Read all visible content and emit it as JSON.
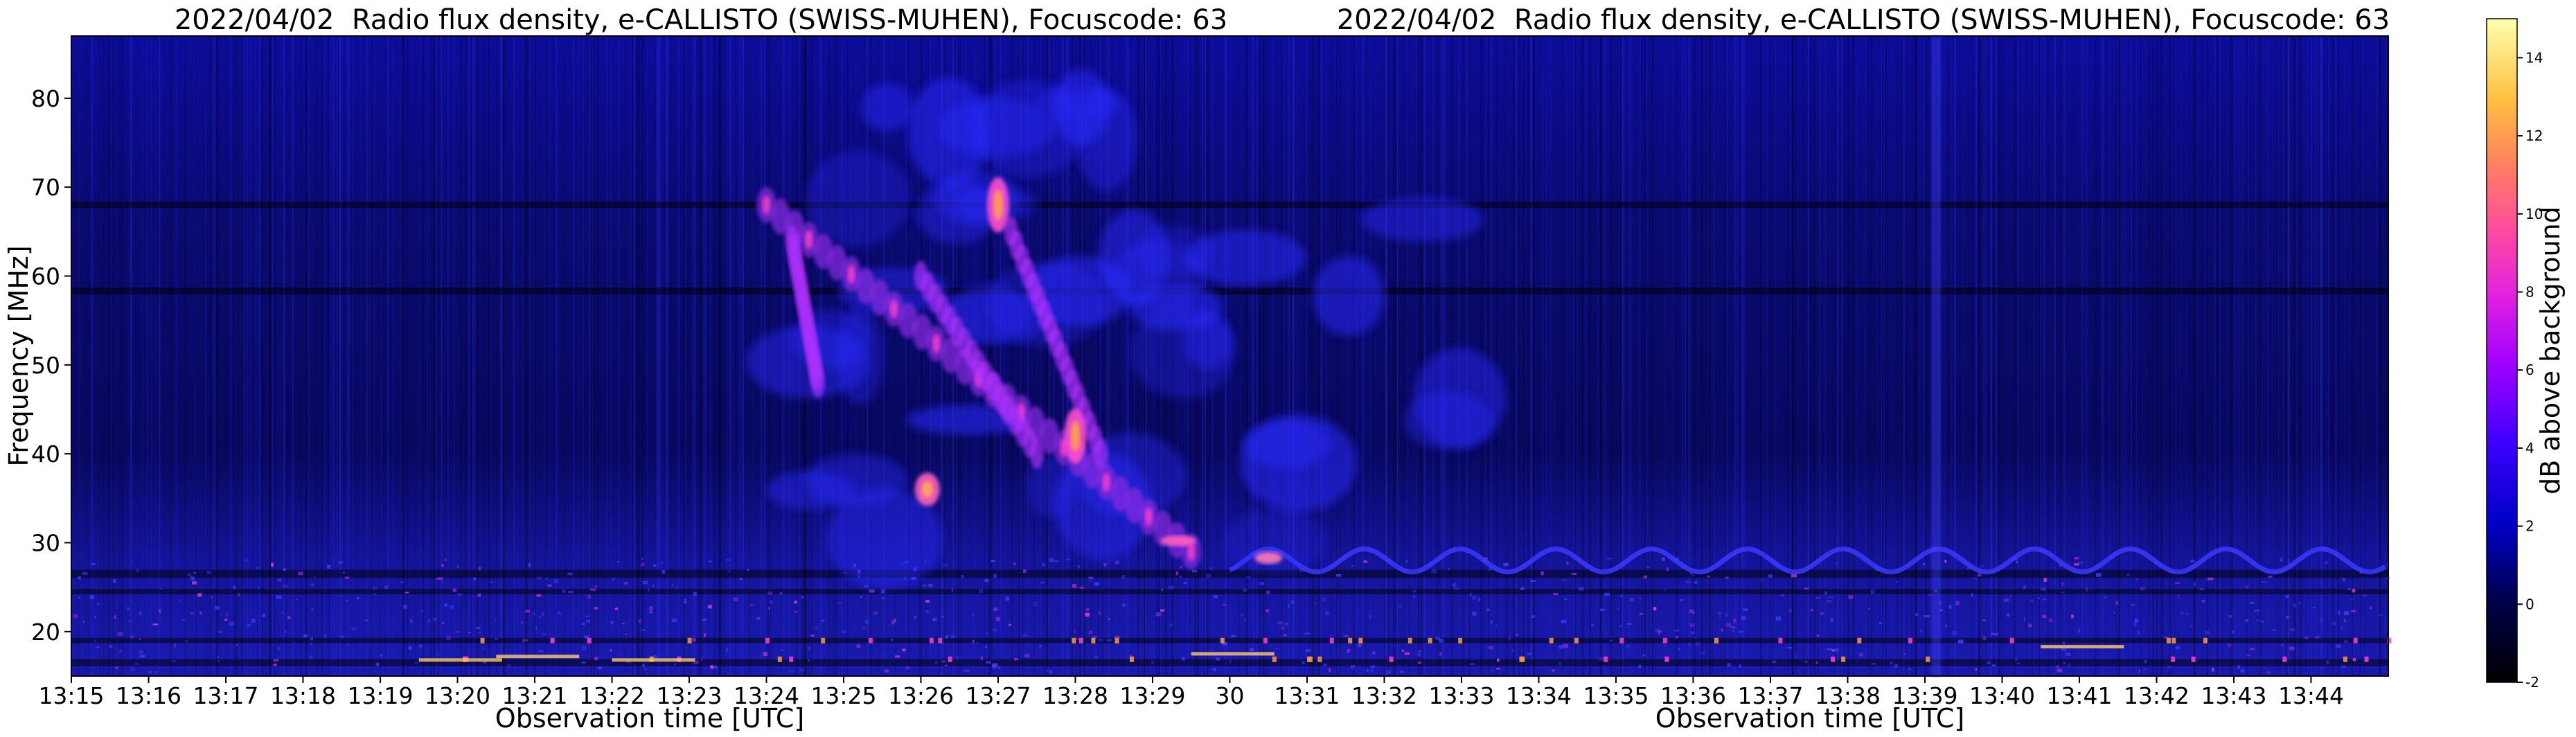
{
  "colors": {
    "background_low": "#000000",
    "background_mid": "#0a0a8c",
    "blue": "#2020ff",
    "violet": "#8a2be2",
    "magenta": "#ff2fd0",
    "orange": "#ff9a3a",
    "yellow": "#ffff60"
  },
  "chart_data": [
    {
      "type": "heatmap",
      "title": "2022/04/02  Radio flux density, e-CALLISTO (SWISS-MUHEN), Focuscode: 63",
      "xlabel": "Observation time [UTC]",
      "ylabel": "Frequency [MHz]",
      "x_ticks": [
        "13:15",
        "13:16",
        "13:17",
        "13:18",
        "13:19",
        "13:20",
        "13:21",
        "13:22",
        "13:23",
        "13:24",
        "13:25",
        "13:26",
        "13:27",
        "13:28",
        "13:29"
      ],
      "xlim": [
        "13:15",
        "13:30"
      ],
      "y_ticks": [
        20,
        30,
        40,
        50,
        60,
        70,
        80
      ],
      "ylim": [
        15,
        87
      ],
      "features": [
        {
          "name": "type II burst lane",
          "start": "13:24",
          "end": "13:29:30",
          "freq_start": 68,
          "freq_end": 29
        },
        {
          "name": "bright emission",
          "time": "13:27",
          "freq": 68
        },
        {
          "name": "bright emission",
          "time": "13:28",
          "freq": 42
        }
      ]
    },
    {
      "type": "heatmap",
      "title": "2022/04/02  Radio flux density, e-CALLISTO (SWISS-MUHEN), Focuscode: 63",
      "xlabel": "Observation time [UTC]",
      "ylabel": "",
      "x_ticks": [
        "30",
        "13:31",
        "13:32",
        "13:33",
        "13:34",
        "13:35",
        "13:36",
        "13:37",
        "13:38",
        "13:39",
        "13:40",
        "13:41",
        "13:42",
        "13:43",
        "13:44"
      ],
      "xlim": [
        "13:30",
        "13:45"
      ],
      "ylim": [
        15,
        87
      ]
    }
  ],
  "colorbar": {
    "label": "dB above background",
    "ticks": [
      -2,
      0,
      2,
      4,
      6,
      8,
      10,
      12,
      14
    ],
    "range": [
      -2,
      15
    ]
  }
}
